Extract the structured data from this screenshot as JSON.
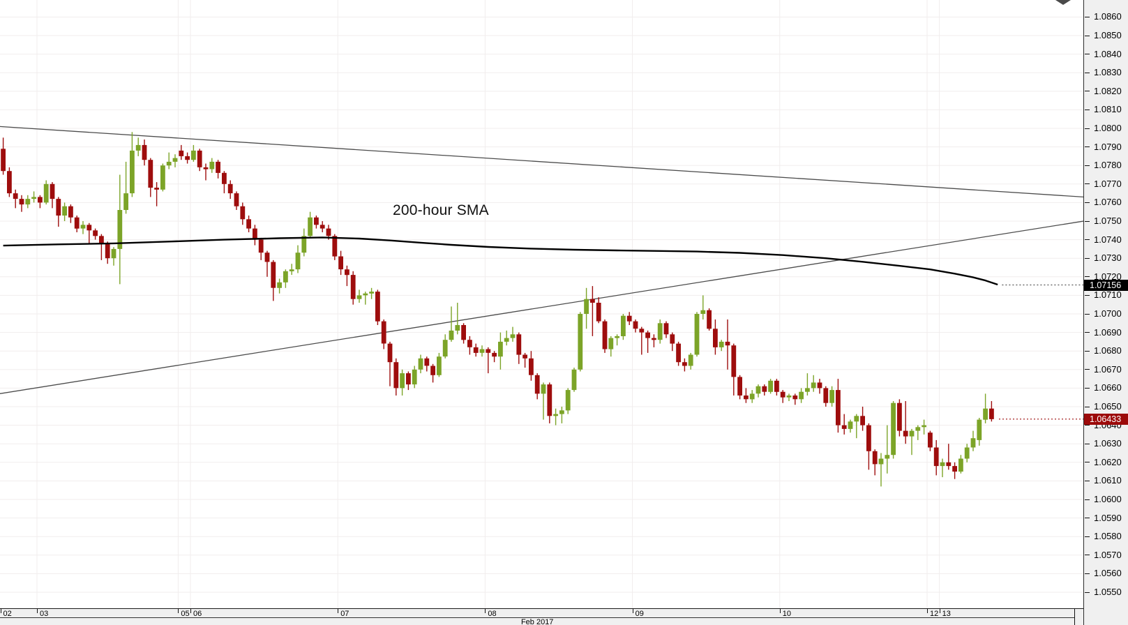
{
  "chart_data": {
    "type": "candlestick",
    "timeframe_hint": "hourly",
    "annotation": {
      "text": "200-hour SMA",
      "x_index": 63.5,
      "price": 1.0757
    },
    "price_axis": {
      "tick_labels": [
        "1.0860",
        "1.0850",
        "1.0840",
        "1.0830",
        "1.0820",
        "1.0810",
        "1.0800",
        "1.0790",
        "1.0780",
        "1.0770",
        "1.0760",
        "1.0750",
        "1.0740",
        "1.0730",
        "1.0720",
        "1.0710",
        "1.0700",
        "1.0690",
        "1.0680",
        "1.0670",
        "1.0660",
        "1.0650",
        "1.0640",
        "1.0630",
        "1.0620",
        "1.0610",
        "1.0600",
        "1.0590",
        "1.0580",
        "1.0570",
        "1.0560",
        "1.0550"
      ],
      "grid": true
    },
    "x_axis": {
      "day_ticks": [
        {
          "label": "02",
          "start_index": 0
        },
        {
          "label": "03",
          "start_index": 6
        },
        {
          "label": "05",
          "start_index": 29
        },
        {
          "label": "06",
          "start_index": 31
        },
        {
          "label": "07",
          "start_index": 55
        },
        {
          "label": "08",
          "start_index": 79
        },
        {
          "label": "09",
          "start_index": 103
        },
        {
          "label": "10",
          "start_index": 127
        },
        {
          "label": "12",
          "start_index": 151
        },
        {
          "label": "13",
          "start_index": 153
        }
      ],
      "month_label": {
        "text": "Feb 2017",
        "center_index": 87
      },
      "grid": true
    },
    "candles": {
      "up_color": "#7ca428",
      "down_color": "#9e0d0d",
      "ohlc": [
        [
          1.0789,
          1.0795,
          1.0775,
          1.0777
        ],
        [
          1.0777,
          1.0779,
          1.0763,
          1.0765
        ],
        [
          1.0765,
          1.0767,
          1.0757,
          1.0762
        ],
        [
          1.0762,
          1.0764,
          1.0755,
          1.0759
        ],
        [
          1.0759,
          1.0764,
          1.0757,
          1.0762
        ],
        [
          1.0762,
          1.0766,
          1.076,
          1.0763
        ],
        [
          1.0763,
          1.0764,
          1.0757,
          1.076
        ],
        [
          1.076,
          1.0772,
          1.0759,
          1.077
        ],
        [
          1.077,
          1.0771,
          1.0757,
          1.0762
        ],
        [
          1.0762,
          1.0763,
          1.0747,
          1.0753
        ],
        [
          1.0753,
          1.076,
          1.075,
          1.0758
        ],
        [
          1.0758,
          1.0759,
          1.0749,
          1.0752
        ],
        [
          1.0752,
          1.0753,
          1.0744,
          1.0746
        ],
        [
          1.0746,
          1.075,
          1.0743,
          1.0748
        ],
        [
          1.0748,
          1.0749,
          1.0738,
          1.0745
        ],
        [
          1.0745,
          1.0746,
          1.074,
          1.0742
        ],
        [
          1.0742,
          1.0743,
          1.0729,
          1.0738
        ],
        [
          1.0738,
          1.0739,
          1.0727,
          1.073
        ],
        [
          1.073,
          1.0736,
          1.0726,
          1.0735
        ],
        [
          1.0735,
          1.0775,
          1.0716,
          1.0756
        ],
        [
          1.0756,
          1.0782,
          1.0754,
          1.0765
        ],
        [
          1.0765,
          1.0798,
          1.0763,
          1.0788
        ],
        [
          1.0788,
          1.0795,
          1.0785,
          1.0791
        ],
        [
          1.0791,
          1.0794,
          1.078,
          1.0783
        ],
        [
          1.0783,
          1.0784,
          1.0763,
          1.0768
        ],
        [
          1.0768,
          1.0771,
          1.0758,
          1.0767
        ],
        [
          1.0767,
          1.0781,
          1.0766,
          1.078
        ],
        [
          1.078,
          1.0787,
          1.0778,
          1.0782
        ],
        [
          1.0782,
          1.0786,
          1.0779,
          1.0784
        ],
        [
          1.0788,
          1.0791,
          1.0783,
          1.0785
        ],
        [
          1.0785,
          1.0787,
          1.0781,
          1.0783
        ],
        [
          1.0783,
          1.0791,
          1.0782,
          1.0788
        ],
        [
          1.0788,
          1.0789,
          1.0777,
          1.0779
        ],
        [
          1.0779,
          1.0781,
          1.0772,
          1.0778
        ],
        [
          1.0778,
          1.0784,
          1.0776,
          1.0782
        ],
        [
          1.0782,
          1.0783,
          1.0773,
          1.0776
        ],
        [
          1.0776,
          1.0777,
          1.0765,
          1.077
        ],
        [
          1.077,
          1.0772,
          1.0762,
          1.0765
        ],
        [
          1.0765,
          1.0766,
          1.0756,
          1.0758
        ],
        [
          1.0758,
          1.076,
          1.0748,
          1.0751
        ],
        [
          1.0751,
          1.0753,
          1.0744,
          1.0746
        ],
        [
          1.0746,
          1.0748,
          1.0737,
          1.074
        ],
        [
          1.074,
          1.0741,
          1.0729,
          1.0733
        ],
        [
          1.0733,
          1.0734,
          1.072,
          1.0728
        ],
        [
          1.0728,
          1.0729,
          1.0707,
          1.0714
        ],
        [
          1.0714,
          1.0719,
          1.0711,
          1.0717
        ],
        [
          1.0717,
          1.0724,
          1.0714,
          1.0723
        ],
        [
          1.0723,
          1.0727,
          1.0721,
          1.0724
        ],
        [
          1.0724,
          1.0737,
          1.0722,
          1.0733
        ],
        [
          1.0733,
          1.0746,
          1.0731,
          1.0742
        ],
        [
          1.0742,
          1.0755,
          1.0741,
          1.0752
        ],
        [
          1.0752,
          1.0753,
          1.0746,
          1.0748
        ],
        [
          1.0748,
          1.075,
          1.0744,
          1.0746
        ],
        [
          1.0746,
          1.0748,
          1.074,
          1.0742
        ],
        [
          1.0742,
          1.0743,
          1.0729,
          1.0731
        ],
        [
          1.0731,
          1.0734,
          1.0721,
          1.0724
        ],
        [
          1.0724,
          1.0726,
          1.0715,
          1.0721
        ],
        [
          1.0721,
          1.0723,
          1.0705,
          1.0708
        ],
        [
          1.0708,
          1.0713,
          1.0706,
          1.071
        ],
        [
          1.071,
          1.0712,
          1.0705,
          1.0711
        ],
        [
          1.0711,
          1.0714,
          1.0708,
          1.0712
        ],
        [
          1.0712,
          1.0713,
          1.0694,
          1.0696
        ],
        [
          1.0696,
          1.0697,
          1.0681,
          1.0684
        ],
        [
          1.0684,
          1.0685,
          1.0661,
          1.0674
        ],
        [
          1.0674,
          1.0676,
          1.0656,
          1.066
        ],
        [
          1.066,
          1.067,
          1.0656,
          1.0668
        ],
        [
          1.0668,
          1.0669,
          1.0659,
          1.0662
        ],
        [
          1.0662,
          1.0672,
          1.066,
          1.067
        ],
        [
          1.067,
          1.0678,
          1.0668,
          1.0676
        ],
        [
          1.0676,
          1.0677,
          1.0669,
          1.0672
        ],
        [
          1.0672,
          1.0673,
          1.0663,
          1.0667
        ],
        [
          1.0667,
          1.0679,
          1.0666,
          1.0677
        ],
        [
          1.0677,
          1.0689,
          1.0676,
          1.0686
        ],
        [
          1.0686,
          1.0704,
          1.0685,
          1.0691
        ],
        [
          1.0691,
          1.0706,
          1.0689,
          1.0694
        ],
        [
          1.0694,
          1.0695,
          1.0684,
          1.0686
        ],
        [
          1.0686,
          1.0688,
          1.0678,
          1.0682
        ],
        [
          1.0682,
          1.0684,
          1.0677,
          1.0679
        ],
        [
          1.0679,
          1.0683,
          1.0677,
          1.0681
        ],
        [
          1.0681,
          1.0682,
          1.0668,
          1.0679
        ],
        [
          1.0679,
          1.068,
          1.0674,
          1.0677
        ],
        [
          1.0677,
          1.069,
          1.067,
          1.0685
        ],
        [
          1.0685,
          1.0691,
          1.0683,
          1.0687
        ],
        [
          1.0687,
          1.0693,
          1.0685,
          1.0689
        ],
        [
          1.0689,
          1.069,
          1.0673,
          1.0678
        ],
        [
          1.0678,
          1.0679,
          1.0671,
          1.0676
        ],
        [
          1.0676,
          1.068,
          1.0664,
          1.0667
        ],
        [
          1.0667,
          1.0668,
          1.0654,
          1.0657
        ],
        [
          1.0657,
          1.0663,
          1.0643,
          1.0662
        ],
        [
          1.0662,
          1.0663,
          1.0641,
          1.0645
        ],
        [
          1.0645,
          1.0649,
          1.064,
          1.0646
        ],
        [
          1.0646,
          1.065,
          1.0641,
          1.0648
        ],
        [
          1.0648,
          1.066,
          1.0646,
          1.0659
        ],
        [
          1.0659,
          1.0671,
          1.0658,
          1.067
        ],
        [
          1.067,
          1.0701,
          1.0669,
          1.07
        ],
        [
          1.07,
          1.0714,
          1.0692,
          1.0708
        ],
        [
          1.0708,
          1.0715,
          1.0688,
          1.0706
        ],
        [
          1.0706,
          1.0709,
          1.0695,
          1.0696
        ],
        [
          1.0696,
          1.0697,
          1.0679,
          1.0681
        ],
        [
          1.0681,
          1.0688,
          1.0677,
          1.0687
        ],
        [
          1.0687,
          1.0689,
          1.0683,
          1.0688
        ],
        [
          1.0688,
          1.07,
          1.0686,
          1.0699
        ],
        [
          1.0699,
          1.0701,
          1.0694,
          1.0696
        ],
        [
          1.0696,
          1.0697,
          1.069,
          1.0692
        ],
        [
          1.0692,
          1.0693,
          1.0678,
          1.069
        ],
        [
          1.069,
          1.0691,
          1.0679,
          1.0687
        ],
        [
          1.0687,
          1.0689,
          1.0682,
          1.0686
        ],
        [
          1.0686,
          1.0697,
          1.0684,
          1.0695
        ],
        [
          1.0695,
          1.0696,
          1.0687,
          1.0689
        ],
        [
          1.0689,
          1.069,
          1.068,
          1.0684
        ],
        [
          1.0684,
          1.0685,
          1.0672,
          1.0674
        ],
        [
          1.0674,
          1.0676,
          1.0669,
          1.0672
        ],
        [
          1.0672,
          1.0679,
          1.067,
          1.0678
        ],
        [
          1.0678,
          1.0701,
          1.0677,
          1.07
        ],
        [
          1.07,
          1.071,
          1.0697,
          1.0702
        ],
        [
          1.0702,
          1.0703,
          1.0691,
          1.0692
        ],
        [
          1.0692,
          1.0697,
          1.0678,
          1.0682
        ],
        [
          1.0682,
          1.0686,
          1.068,
          1.0685
        ],
        [
          1.0685,
          1.0697,
          1.067,
          1.0683
        ],
        [
          1.0683,
          1.0684,
          1.0656,
          1.0666
        ],
        [
          1.0666,
          1.0667,
          1.0654,
          1.0656
        ],
        [
          1.0656,
          1.066,
          1.0652,
          1.0654
        ],
        [
          1.0654,
          1.0659,
          1.0652,
          1.0657
        ],
        [
          1.0657,
          1.0662,
          1.0655,
          1.0661
        ],
        [
          1.0661,
          1.0662,
          1.0656,
          1.0658
        ],
        [
          1.0658,
          1.0665,
          1.0657,
          1.0664
        ],
        [
          1.0664,
          1.0665,
          1.0656,
          1.0658
        ],
        [
          1.0658,
          1.0659,
          1.0652,
          1.0655
        ],
        [
          1.0655,
          1.0657,
          1.0653,
          1.0656
        ],
        [
          1.0656,
          1.0657,
          1.0651,
          1.0654
        ],
        [
          1.0654,
          1.066,
          1.0652,
          1.0658
        ],
        [
          1.0658,
          1.0668,
          1.0656,
          1.066
        ],
        [
          1.066,
          1.0667,
          1.0658,
          1.0663
        ],
        [
          1.0663,
          1.0665,
          1.0657,
          1.066
        ],
        [
          1.066,
          1.0661,
          1.065,
          1.0652
        ],
        [
          1.0652,
          1.0661,
          1.065,
          1.0659
        ],
        [
          1.0659,
          1.0665,
          1.0636,
          1.064
        ],
        [
          1.064,
          1.0646,
          1.0635,
          1.0638
        ],
        [
          1.0638,
          1.0643,
          1.0636,
          1.0642
        ],
        [
          1.0642,
          1.0646,
          1.0633,
          1.0645
        ],
        [
          1.0645,
          1.065,
          1.0637,
          1.064
        ],
        [
          1.064,
          1.0641,
          1.0616,
          1.0626
        ],
        [
          1.0626,
          1.0627,
          1.0613,
          1.0619
        ],
        [
          1.0619,
          1.0625,
          1.0607,
          1.0622
        ],
        [
          1.0622,
          1.064,
          1.0614,
          1.0624
        ],
        [
          1.0624,
          1.0653,
          1.0622,
          1.0652
        ],
        [
          1.0652,
          1.0654,
          1.0634,
          1.0637
        ],
        [
          1.0637,
          1.0653,
          1.063,
          1.0634
        ],
        [
          1.0634,
          1.0638,
          1.0624,
          1.0637
        ],
        [
          1.0637,
          1.064,
          1.0632,
          1.0639
        ],
        [
          1.0639,
          1.0643,
          1.0635,
          1.064
        ],
        [
          1.0636,
          1.0637,
          1.0626,
          1.0628
        ],
        [
          1.0628,
          1.0632,
          1.0613,
          1.0618
        ],
        [
          1.0618,
          1.0622,
          1.0612,
          1.062
        ],
        [
          1.062,
          1.063,
          1.0616,
          1.0618
        ],
        [
          1.0618,
          1.062,
          1.0611,
          1.0615
        ],
        [
          1.0615,
          1.0624,
          1.0614,
          1.0622
        ],
        [
          1.0622,
          1.063,
          1.062,
          1.0628
        ],
        [
          1.0628,
          1.0637,
          1.0626,
          1.0633
        ],
        [
          1.0632,
          1.0644,
          1.0629,
          1.0643
        ],
        [
          1.0643,
          1.0657,
          1.0641,
          1.0649
        ],
        [
          1.0649,
          1.0653,
          1.0642,
          1.06433
        ]
      ]
    },
    "sma": {
      "label": "200-hour SMA",
      "color": "#000000",
      "points": [
        [
          0,
          1.07368
        ],
        [
          9,
          1.07375
        ],
        [
          18,
          1.0738
        ],
        [
          27,
          1.0739
        ],
        [
          36,
          1.074
        ],
        [
          45,
          1.07408
        ],
        [
          52,
          1.07412
        ],
        [
          58,
          1.07406
        ],
        [
          63,
          1.07396
        ],
        [
          68,
          1.07384
        ],
        [
          73,
          1.07372
        ],
        [
          79,
          1.07361
        ],
        [
          86,
          1.07352
        ],
        [
          93,
          1.07346
        ],
        [
          100,
          1.07342
        ],
        [
          107,
          1.07339
        ],
        [
          113,
          1.07336
        ],
        [
          120,
          1.07329
        ],
        [
          127,
          1.07317
        ],
        [
          134,
          1.073
        ],
        [
          140,
          1.07281
        ],
        [
          146,
          1.07259
        ],
        [
          151,
          1.0724
        ],
        [
          155,
          1.07217
        ],
        [
          158,
          1.07197
        ],
        [
          160,
          1.0718
        ],
        [
          162,
          1.07158
        ]
      ]
    },
    "trendlines": [
      {
        "name": "descending-resistance",
        "from_index": -0.6,
        "from_price": 1.0801,
        "to_index": 176,
        "to_price": 1.0763,
        "color": "#4b4b4b"
      },
      {
        "name": "ascending-support",
        "from_index": -0.6,
        "from_price": 1.0657,
        "to_index": 176,
        "to_price": 1.075,
        "color": "#4b4b4b"
      }
    ],
    "dotted_levels": [
      {
        "value": 1.07156,
        "color": "#555555",
        "from_index": 162.7
      },
      {
        "value": 1.06433,
        "color": "#9c0a0a",
        "from_index": 162.2
      }
    ],
    "price_tags": [
      {
        "text": "1.07156",
        "value": 1.07156,
        "background": "#000000"
      },
      {
        "text": "1.06433",
        "value": 1.06433,
        "background": "#9c0a0a"
      }
    ],
    "colors": {
      "background": "#ffffff",
      "grid": "#f1eded",
      "axis_background": "#f0f0f0",
      "axis_text": "#000000",
      "tag_text": "#ffffff"
    }
  }
}
